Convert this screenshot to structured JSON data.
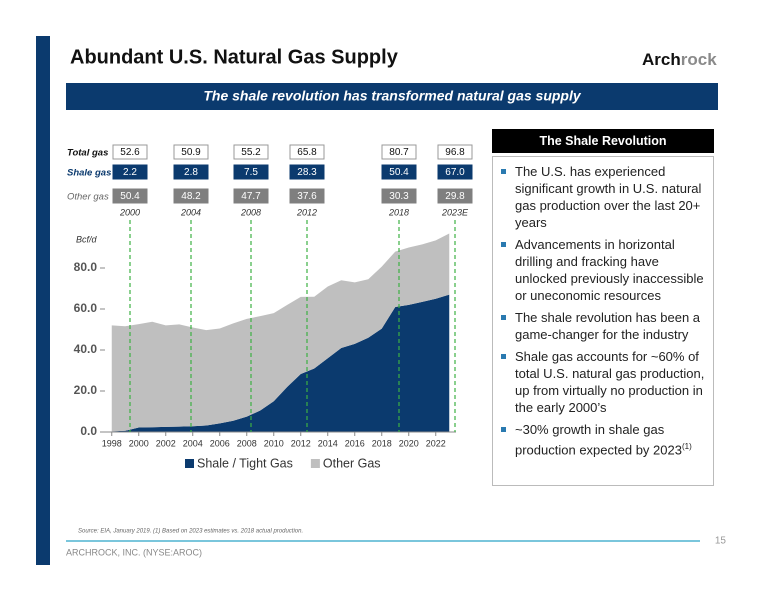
{
  "header": {
    "title": "Abundant U.S. Natural Gas Supply",
    "logo": [
      "Arch",
      "rock"
    ],
    "banner": "The shale revolution has transformed natural gas supply"
  },
  "summary": {
    "row_labels": [
      "Total gas",
      "Shale gas",
      "Other gas"
    ],
    "years": [
      "2000",
      "2004",
      "2008",
      "2012",
      "2018",
      "2023E"
    ],
    "rows": [
      [
        "52.6",
        "50.9",
        "55.2",
        "65.8",
        "80.7",
        "96.8"
      ],
      [
        "2.2",
        "2.8",
        "7.5",
        "28.3",
        "50.4",
        "67.0"
      ],
      [
        "50.4",
        "48.2",
        "47.7",
        "37.6",
        "30.3",
        "29.8"
      ]
    ]
  },
  "chart_data": {
    "type": "area",
    "stacked": true,
    "y_label": "Bcf/d",
    "x": [
      1998,
      1999,
      2000,
      2001,
      2002,
      2003,
      2004,
      2005,
      2006,
      2007,
      2008,
      2009,
      2010,
      2011,
      2012,
      2013,
      2014,
      2015,
      2016,
      2017,
      2018,
      2019,
      2020,
      2021,
      2022,
      2023
    ],
    "xlim": [
      1997.5,
      2023.5
    ],
    "xticks": [
      1998,
      2000,
      2002,
      2004,
      2006,
      2008,
      2010,
      2012,
      2014,
      2016,
      2018,
      2020,
      2022
    ],
    "ylim": [
      0,
      100
    ],
    "yticks": [
      {
        "value": 0,
        "label": "0.0"
      },
      {
        "value": 20,
        "label": "20.0"
      },
      {
        "value": 40,
        "label": "40.0"
      },
      {
        "value": 60,
        "label": "60.0"
      },
      {
        "value": 80,
        "label": "80.0"
      }
    ],
    "series": [
      {
        "name": "Shale / Tight Gas",
        "color": "#0b3a6e",
        "values": [
          0.3,
          0.6,
          2.2,
          2.3,
          2.5,
          2.6,
          2.8,
          3.2,
          4.2,
          5.5,
          7.5,
          10.5,
          15,
          22,
          28.3,
          31,
          36,
          41,
          43,
          46,
          50.4,
          61,
          62,
          63.5,
          65,
          67
        ]
      },
      {
        "name": "Other Gas",
        "color": "#bfbfbf",
        "values": [
          51.7,
          51,
          50.4,
          51.5,
          49.5,
          49.9,
          48.2,
          46.5,
          46.3,
          47.5,
          47.7,
          46,
          43,
          40,
          37.6,
          35,
          35,
          33,
          30,
          28.5,
          30.3,
          27,
          28,
          28,
          28.5,
          29.8
        ]
      }
    ],
    "legend": "bottom"
  },
  "panel": {
    "title": "The Shale Revolution",
    "bullets": [
      "The U.S. has experienced significant growth in U.S. natural gas production over the last 20+ years",
      "Advancements in horizontal drilling and fracking have unlocked previously inaccessible or uneconomic resources",
      "The shale revolution has been a game-changer for the industry",
      "Shale gas accounts for ~60% of total U.S. natural gas production, up from virtually no production in the early 2000’s",
      "~30% growth in shale gas production expected by 2023"
    ],
    "bullet_note": "(1)"
  },
  "footer": {
    "source": "Source: EIA, January 2019. (1) Based on 2023 estimates vs. 2018 actual production.",
    "company": "ARCHROCK, INC. (NYSE:AROC)",
    "page": "15"
  }
}
